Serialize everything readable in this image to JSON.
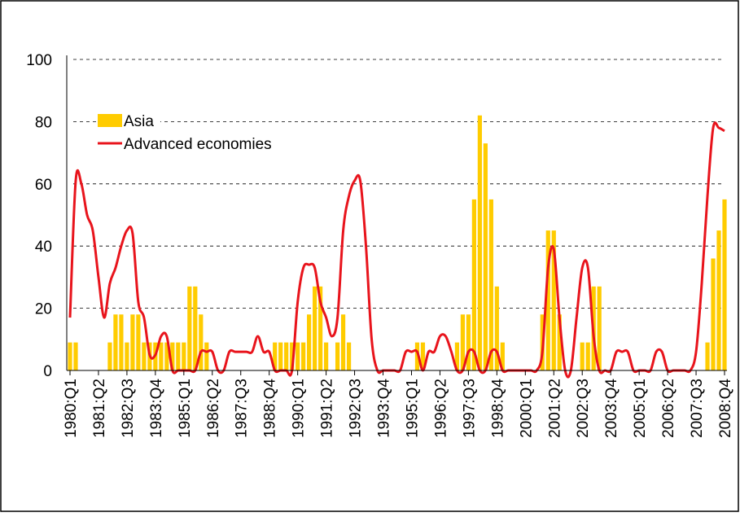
{
  "chart_data": {
    "type": "bar_line",
    "categories": [
      "1980:Q1",
      null,
      null,
      null,
      null,
      "1981:Q2",
      null,
      null,
      null,
      null,
      "1982:Q3",
      null,
      null,
      null,
      null,
      "1983:Q4",
      null,
      null,
      null,
      null,
      "1985:Q1",
      null,
      null,
      null,
      null,
      "1986:Q2",
      null,
      null,
      null,
      null,
      "1987:Q3",
      null,
      null,
      null,
      null,
      "1988:Q4",
      null,
      null,
      null,
      null,
      "1990:Q1",
      null,
      null,
      null,
      null,
      "1991:Q2",
      null,
      null,
      null,
      null,
      "1992:Q3",
      null,
      null,
      null,
      null,
      "1993:Q4",
      null,
      null,
      null,
      null,
      "1995:Q1",
      null,
      null,
      null,
      null,
      "1996:Q2",
      null,
      null,
      null,
      null,
      "1997:Q3",
      null,
      null,
      null,
      null,
      "1998:Q4",
      null,
      null,
      null,
      null,
      "2000:Q1",
      null,
      null,
      null,
      null,
      "2001:Q2",
      null,
      null,
      null,
      null,
      "2002:Q3",
      null,
      null,
      null,
      null,
      "2003:Q4",
      null,
      null,
      null,
      null,
      "2005:Q1",
      null,
      null,
      null,
      null,
      "2006:Q2",
      null,
      null,
      null,
      null,
      "2007:Q3",
      null,
      null,
      null,
      null,
      "2008:Q4"
    ],
    "series": [
      {
        "name": "Asia",
        "kind": "bar",
        "color": "#ffcc00",
        "values": [
          9,
          9,
          0,
          0,
          0,
          0,
          0,
          9,
          18,
          18,
          9,
          18,
          18,
          9,
          9,
          9,
          9,
          9,
          9,
          9,
          9,
          27,
          27,
          18,
          9,
          0,
          0,
          0,
          0,
          0,
          0,
          0,
          0,
          0,
          0,
          0,
          9,
          9,
          9,
          9,
          9,
          9,
          18,
          27,
          27,
          9,
          0,
          9,
          18,
          9,
          0,
          0,
          0,
          0,
          0,
          0,
          0,
          0,
          0,
          0,
          0,
          9,
          9,
          0,
          0,
          0,
          0,
          0,
          9,
          18,
          18,
          55,
          82,
          73,
          55,
          27,
          9,
          0,
          0,
          0,
          0,
          0,
          0,
          18,
          45,
          45,
          18,
          0,
          0,
          0,
          9,
          9,
          27,
          27,
          0,
          0,
          0,
          0,
          0,
          0,
          0,
          0,
          0,
          0,
          0,
          0,
          0,
          0,
          0,
          0,
          0,
          0,
          9,
          36,
          45,
          55
        ]
      },
      {
        "name": "Advanced economies",
        "kind": "line",
        "color": "#e8141c",
        "values": [
          17,
          61,
          60,
          50,
          45,
          30,
          17,
          28,
          33,
          40,
          45,
          44,
          22,
          17,
          5,
          5,
          11,
          11,
          0,
          0,
          0,
          0,
          0,
          6,
          6,
          6,
          0,
          0,
          6,
          6,
          6,
          6,
          6,
          11,
          6,
          6,
          0,
          0,
          0,
          0,
          22,
          33,
          34,
          33,
          22,
          17,
          11,
          17,
          45,
          56,
          61,
          61,
          40,
          10,
          0,
          0,
          0,
          0,
          0,
          6,
          6,
          6,
          0,
          6,
          6,
          11,
          11,
          6,
          0,
          0,
          6,
          6,
          0,
          0,
          6,
          6,
          0,
          0,
          0,
          0,
          0,
          0,
          0,
          6,
          33,
          39,
          17,
          0,
          0,
          17,
          33,
          33,
          11,
          0,
          0,
          0,
          6,
          6,
          6,
          0,
          0,
          0,
          0,
          6,
          6,
          0,
          0,
          0,
          0,
          0,
          6,
          28,
          56,
          78,
          78,
          77
        ]
      }
    ],
    "ylim": [
      0,
      100
    ],
    "yticks": [
      0,
      20,
      40,
      60,
      80,
      100
    ],
    "grid": true,
    "legend": "upper left"
  }
}
